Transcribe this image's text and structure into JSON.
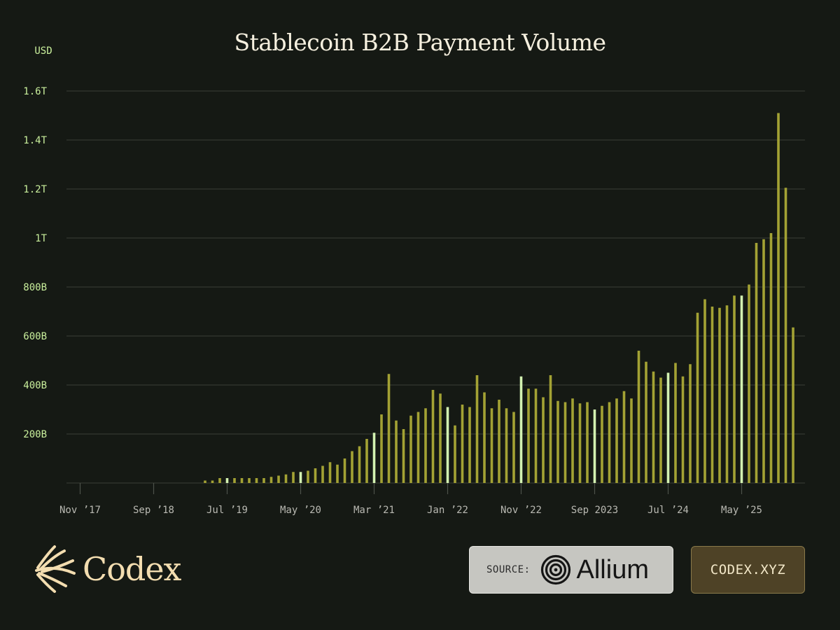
{
  "colors": {
    "background": "#151914",
    "bar": "#a3a234",
    "bar_highlight": "#d3f2b1",
    "tick_text": "#c9ef9c",
    "logo": "#f3ddb0"
  },
  "chart_data": {
    "type": "bar",
    "title": "Stablecoin B2B Payment Volume",
    "ylabel": "USD",
    "ylim": [
      0,
      1.6
    ],
    "value_unit": "trillion USD",
    "y_ticks": [
      {
        "value": 0.2,
        "label": "200B"
      },
      {
        "value": 0.4,
        "label": "400B"
      },
      {
        "value": 0.6,
        "label": "600B"
      },
      {
        "value": 0.8,
        "label": "800B"
      },
      {
        "value": 1.0,
        "label": "1T"
      },
      {
        "value": 1.2,
        "label": "1.2T"
      },
      {
        "value": 1.4,
        "label": "1.4T"
      },
      {
        "value": 1.6,
        "label": "1.6T"
      }
    ],
    "grid": true,
    "x_start": "2017-11",
    "x_ticks": [
      {
        "month": "2017-11",
        "label": "Nov ’17"
      },
      {
        "month": "2018-09",
        "label": "Sep ’18"
      },
      {
        "month": "2019-07",
        "label": "Jul ’19"
      },
      {
        "month": "2020-05",
        "label": "May ’20"
      },
      {
        "month": "2021-03",
        "label": "Mar ’21"
      },
      {
        "month": "2022-01",
        "label": "Jan ’22"
      },
      {
        "month": "2022-11",
        "label": "Nov ’22"
      },
      {
        "month": "2023-09",
        "label": "Sep 2023"
      },
      {
        "month": "2024-07",
        "label": "Jul ’24"
      },
      {
        "month": "2025-05",
        "label": "May ’25"
      }
    ],
    "series": [
      {
        "months": [
          "2019-04",
          "2019-05",
          "2019-06",
          "2019-07",
          "2019-08",
          "2019-09",
          "2019-10",
          "2019-11",
          "2019-12",
          "2020-01",
          "2020-02",
          "2020-03",
          "2020-04",
          "2020-05",
          "2020-06",
          "2020-07",
          "2020-08",
          "2020-09",
          "2020-10",
          "2020-11",
          "2020-12",
          "2021-01",
          "2021-02",
          "2021-03",
          "2021-04",
          "2021-05",
          "2021-06",
          "2021-07",
          "2021-08",
          "2021-09",
          "2021-10",
          "2021-11",
          "2021-12",
          "2022-01",
          "2022-02",
          "2022-03",
          "2022-04",
          "2022-05",
          "2022-06",
          "2022-07",
          "2022-08",
          "2022-09",
          "2022-10",
          "2022-11",
          "2022-12",
          "2023-01",
          "2023-02",
          "2023-03",
          "2023-04",
          "2023-05",
          "2023-06",
          "2023-07",
          "2023-08",
          "2023-09",
          "2023-10",
          "2023-11",
          "2023-12",
          "2024-01",
          "2024-02",
          "2024-03",
          "2024-04",
          "2024-05",
          "2024-06",
          "2024-07",
          "2024-08",
          "2024-09",
          "2024-10",
          "2024-11",
          "2024-12",
          "2025-01",
          "2025-02",
          "2025-03",
          "2025-04",
          "2025-05",
          "2025-06",
          "2025-07",
          "2025-08",
          "2025-09",
          "2025-10",
          "2025-11",
          "2025-12"
        ],
        "values": [
          0.01,
          0.01,
          0.02,
          0.02,
          0.02,
          0.02,
          0.02,
          0.02,
          0.02,
          0.025,
          0.03,
          0.035,
          0.045,
          0.045,
          0.05,
          0.06,
          0.07,
          0.085,
          0.075,
          0.1,
          0.13,
          0.15,
          0.18,
          0.205,
          0.28,
          0.445,
          0.255,
          0.22,
          0.275,
          0.29,
          0.305,
          0.38,
          0.365,
          0.31,
          0.235,
          0.32,
          0.31,
          0.44,
          0.37,
          0.305,
          0.34,
          0.305,
          0.29,
          0.435,
          0.385,
          0.385,
          0.35,
          0.44,
          0.335,
          0.33,
          0.345,
          0.325,
          0.33,
          0.3,
          0.315,
          0.33,
          0.345,
          0.375,
          0.345,
          0.54,
          0.495,
          0.455,
          0.43,
          0.45,
          0.49,
          0.435,
          0.485,
          0.695,
          0.75,
          0.72,
          0.715,
          0.725,
          0.765,
          0.765,
          0.81,
          0.98,
          0.995,
          1.02,
          1.51,
          1.205,
          0.635
        ]
      }
    ]
  },
  "branding": {
    "logo_text": "Codex",
    "source_label": "SOURCE:",
    "source_name": "Allium",
    "site": "CODEX.XYZ"
  }
}
